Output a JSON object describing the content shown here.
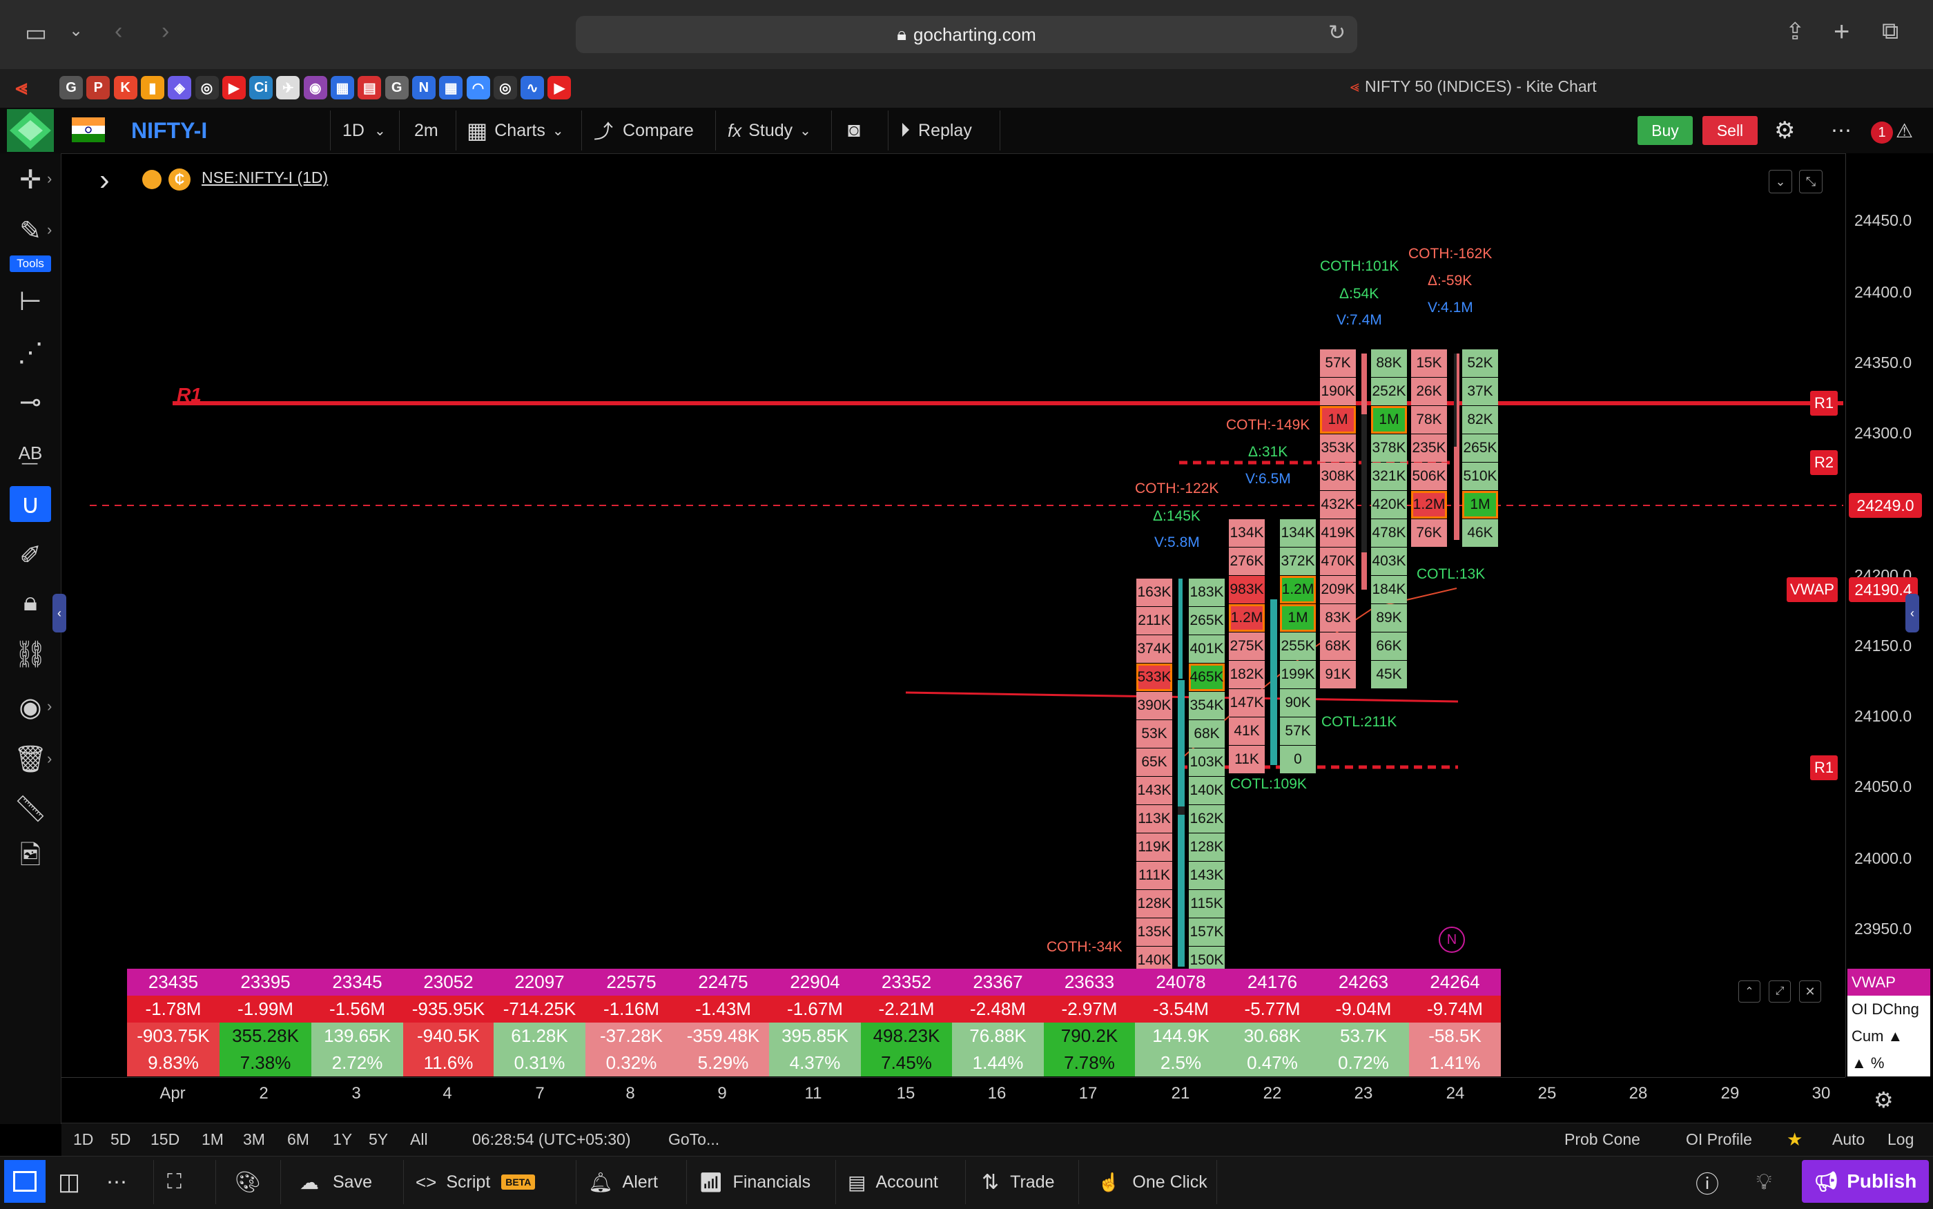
{
  "browser": {
    "url": "gocharting.com",
    "tab_title": "NIFTY 50 (INDICES) - Kite Chart",
    "favicons": [
      "G",
      "P",
      "K",
      "▮",
      "◈",
      "◎",
      "▶",
      "Ci",
      "✈",
      "◉",
      "▦",
      "▤",
      "G",
      "N",
      "▦",
      "◠",
      "◎",
      "∿",
      "▶"
    ]
  },
  "toolbar": {
    "symbol": "NIFTY-I",
    "interval": "1D",
    "sub_interval": "2m",
    "charts": "Charts",
    "compare": "Compare",
    "study": "Study",
    "replay": "Replay",
    "buy": "Buy",
    "sell": "Sell",
    "notif_count": "1"
  },
  "legend": {
    "symbol_line": "NSE:NIFTY-I (1D)"
  },
  "left_tools": {
    "tools_label": "Tools"
  },
  "price_axis": {
    "ticks": [
      "24450.0",
      "24400.0",
      "24350.0",
      "24300.0",
      "24200.0",
      "24150.0",
      "24100.0",
      "24050.0",
      "24000.0",
      "23950.0"
    ],
    "current_price": "24249.0",
    "vwap_value": "24190.4",
    "vwap_label": "VWAP"
  },
  "levels": {
    "r1_chart_label": "R1",
    "r1_box": "R1",
    "r2_box": "R2",
    "r1_lower_box": "R1"
  },
  "footprint": {
    "col1_left": [
      "163K",
      "211K",
      "374K",
      "533K",
      "390K",
      "53K",
      "65K",
      "143K",
      "113K",
      "119K",
      "111K",
      "128K",
      "135K",
      "140K"
    ],
    "col1_right": [
      "183K",
      "265K",
      "401K",
      "465K",
      "354K",
      "68K",
      "103K",
      "140K",
      "162K",
      "128K",
      "143K",
      "115K",
      "157K",
      "150K"
    ],
    "col2_left": [
      "134K",
      "276K",
      "983K",
      "1.2M",
      "275K",
      "182K",
      "147K",
      "41K",
      "11K"
    ],
    "col2_right": [
      "134K",
      "372K",
      "1.2M",
      "1M",
      "255K",
      "199K",
      "90K",
      "57K",
      "0"
    ],
    "col3_left": [
      "57K",
      "190K",
      "1M",
      "353K",
      "308K",
      "432K",
      "419K",
      "470K",
      "209K",
      "83K",
      "68K",
      "91K"
    ],
    "col3_right": [
      "88K",
      "252K",
      "1M",
      "378K",
      "321K",
      "420K",
      "478K",
      "403K",
      "184K",
      "89K",
      "66K",
      "45K"
    ],
    "col4_left": [
      "15K",
      "26K",
      "78K",
      "235K",
      "506K",
      "1.2M",
      "76K"
    ],
    "col4_right": [
      "52K",
      "37K",
      "82K",
      "265K",
      "510K",
      "1M",
      "46K"
    ]
  },
  "annotations": {
    "c1_coth": "COTH:-122K",
    "c1_delta": "Δ:145K",
    "c1_vol": "V:5.8M",
    "c1_bottom_coth": "COTH:-34K",
    "c2_coth": "COTH:-149K",
    "c2_delta": "Δ:31K",
    "c2_vol": "V:6.5M",
    "c2_cotl": "COTL:109K",
    "c3_coth": "COTH:101K",
    "c3_delta": "Δ:54K",
    "c3_vol": "V:7.4M",
    "c3_cotl": "COTL:211K",
    "c4_coth": "COTH:-162K",
    "c4_delta": "Δ:-59K",
    "c4_vol": "V:4.1M",
    "c4_cotl": "COTL:13K",
    "n_badge": "N"
  },
  "stats_table": {
    "row_vwap": [
      "23435",
      "23395",
      "23345",
      "23052",
      "22097",
      "22575",
      "22475",
      "22904",
      "23352",
      "23367",
      "23633",
      "24078",
      "24176",
      "24263",
      "24264"
    ],
    "row_oi": [
      "-1.78M",
      "-1.99M",
      "-1.56M",
      "-935.95K",
      "-714.25K",
      "-1.16M",
      "-1.43M",
      "-1.67M",
      "-2.21M",
      "-2.48M",
      "-2.97M",
      "-3.54M",
      "-5.77M",
      "-9.04M",
      "-9.74M"
    ],
    "row_cum": [
      "-903.75K",
      "355.28K",
      "139.65K",
      "-940.5K",
      "61.28K",
      "-37.28K",
      "-359.48K",
      "395.85K",
      "498.23K",
      "76.88K",
      "790.2K",
      "144.9K",
      "30.68K",
      "53.7K",
      "-58.5K"
    ],
    "row_pct": [
      "9.83%",
      "7.38%",
      "2.72%",
      "11.6%",
      "0.31%",
      "0.32%",
      "5.29%",
      "4.37%",
      "7.45%",
      "1.44%",
      "7.78%",
      "2.5%",
      "0.47%",
      "0.72%",
      "1.41%"
    ],
    "legend": [
      "VWAP",
      "OI DChng",
      "Cum ▲",
      "▲ %"
    ]
  },
  "x_axis": {
    "ticks": [
      "Apr",
      "2",
      "3",
      "4",
      "7",
      "8",
      "9",
      "11",
      "15",
      "16",
      "17",
      "21",
      "22",
      "23",
      "24",
      "25",
      "28",
      "29",
      "30"
    ]
  },
  "timeframes": {
    "items": [
      "1D",
      "5D",
      "15D",
      "1M",
      "3M",
      "6M",
      "1Y",
      "5Y",
      "All"
    ],
    "clock": "06:28:54 (UTC+05:30)",
    "goto": "GoTo...",
    "prob_cone": "Prob Cone",
    "oi_profile": "OI Profile",
    "auto": "Auto",
    "log": "Log"
  },
  "bottom_bar": {
    "save": "Save",
    "script": "Script",
    "beta": "BETA",
    "alert": "Alert",
    "financials": "Financials",
    "account": "Account",
    "trade": "Trade",
    "one_click": "One Click",
    "publish": "Publish"
  },
  "colors": {
    "red_cell": "#e8868b",
    "red_strong": "#e53e43",
    "green_cell": "#8fc98f",
    "green_strong": "#2fb52f",
    "magenta": "#c8189a",
    "accent_blue": "#1565ff",
    "publish": "#8b2be2"
  }
}
